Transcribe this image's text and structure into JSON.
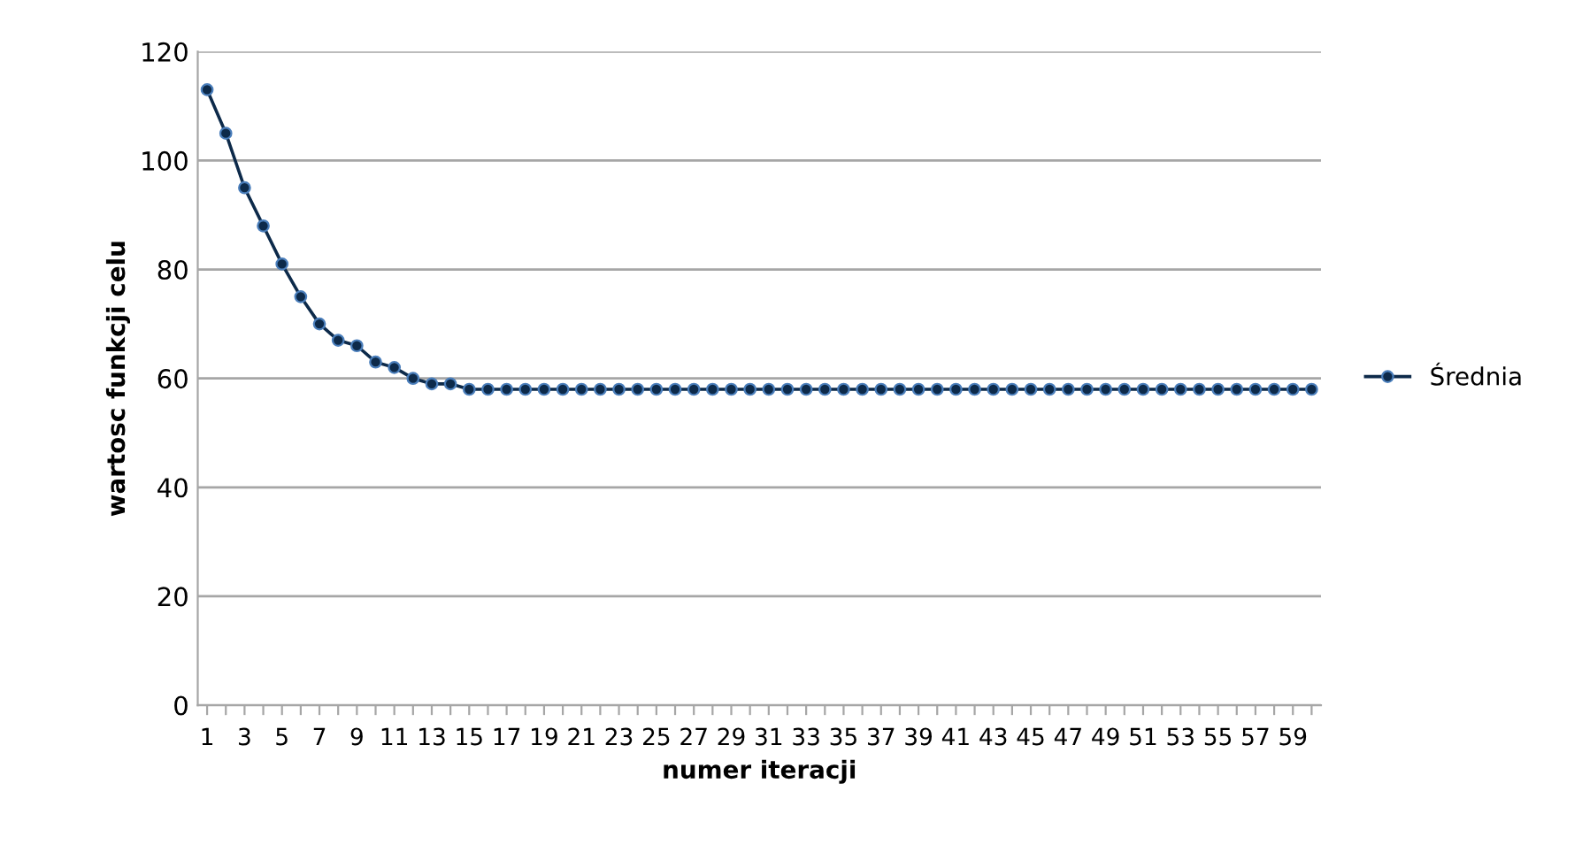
{
  "chart_data": {
    "type": "line",
    "xlabel": "numer iteracji",
    "ylabel": "wartosc funkcji celu",
    "categories": [
      "1",
      null,
      "3",
      null,
      "5",
      null,
      "7",
      null,
      "9",
      null,
      "11",
      null,
      "13",
      null,
      "15",
      null,
      "17",
      null,
      "19",
      null,
      "21",
      null,
      "23",
      null,
      "25",
      null,
      "27",
      null,
      "29",
      null,
      "31",
      null,
      "33",
      null,
      "35",
      null,
      "37",
      null,
      "39",
      null,
      "41",
      null,
      "43",
      null,
      "45",
      null,
      "47",
      null,
      "49",
      null,
      "51",
      null,
      "53",
      null,
      "55",
      null,
      "57",
      null,
      "59",
      null
    ],
    "series": [
      {
        "name": "Średnia",
        "color": "#0d2a4a",
        "values": [
          113,
          105,
          95,
          88,
          81,
          75,
          70,
          67,
          66,
          63,
          62,
          60,
          59,
          59,
          58,
          58,
          58,
          58,
          58,
          58,
          58,
          58,
          58,
          58,
          58,
          58,
          58,
          58,
          58,
          58,
          58,
          58,
          58,
          58,
          58,
          58,
          58,
          58,
          58,
          58,
          58,
          58,
          58,
          58,
          58,
          58,
          58,
          58,
          58,
          58,
          58,
          58,
          58,
          58,
          58,
          58,
          58,
          58,
          58,
          58
        ]
      }
    ],
    "ylim": [
      0,
      120
    ],
    "yticks": [
      0,
      20,
      40,
      60,
      80,
      100,
      120
    ],
    "grid": "y",
    "legend": "right",
    "marker": "circle",
    "line_style": "solid"
  }
}
